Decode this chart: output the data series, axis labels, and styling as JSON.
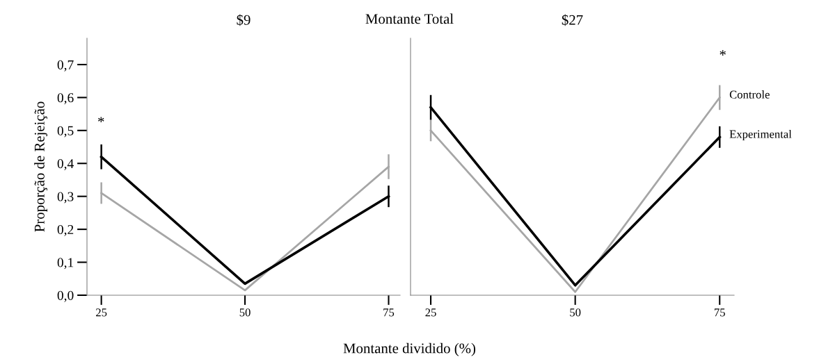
{
  "chart_data": [
    {
      "type": "line",
      "title": "$9",
      "xlabel": "Montante dividido (%)",
      "ylabel": "Proporção de Rejeição",
      "annotations": [
        "Montante Total",
        "*"
      ],
      "x": [
        25,
        50,
        75
      ],
      "xlim": [
        22.5,
        77
      ],
      "xticks": [
        25,
        50,
        75
      ],
      "ylim": [
        0,
        0.78
      ],
      "yticks": [
        {
          "value": 0,
          "label": "0,0"
        },
        {
          "value": 0.1,
          "label": "0,1"
        },
        {
          "value": 0.2,
          "label": "0,2"
        },
        {
          "value": 0.3,
          "label": "0,3"
        },
        {
          "value": 0.4,
          "label": "0,4"
        },
        {
          "value": 0.5,
          "label": "0,5"
        },
        {
          "value": 0.6,
          "label": "0,6"
        },
        {
          "value": 0.7,
          "label": "0,7"
        }
      ],
      "series": [
        {
          "color": "#a6a6a6",
          "values": [
            0.31,
            0.015,
            0.39
          ],
          "errors": [
            0.03,
            null,
            0.035
          ]
        },
        {
          "color": "#000000",
          "values": [
            0.42,
            0.035,
            0.3
          ],
          "errors": [
            0.035,
            null,
            0.03
          ]
        }
      ],
      "grid": false,
      "legend": false,
      "marker": "none",
      "line_style": "solid"
    },
    {
      "type": "line",
      "title": "$27",
      "tick_labels": "x",
      "annotations": [
        "*"
      ],
      "x": [
        25,
        50,
        75
      ],
      "xlim": [
        21.5,
        77.5
      ],
      "xticks": [
        25,
        50,
        75
      ],
      "ylim": [
        0,
        0.78
      ],
      "series": [
        {
          "name": "Controle",
          "color": "#a6a6a6",
          "values": [
            0.5,
            0.01,
            0.6
          ],
          "errors": [
            0.03,
            null,
            0.035
          ]
        },
        {
          "name": "Experimental",
          "color": "#000000",
          "values": [
            0.57,
            0.03,
            0.48
          ],
          "errors": [
            0.035,
            null,
            0.03
          ]
        }
      ],
      "grid": false,
      "legend": false,
      "marker": "none",
      "line_style": "solid"
    }
  ]
}
